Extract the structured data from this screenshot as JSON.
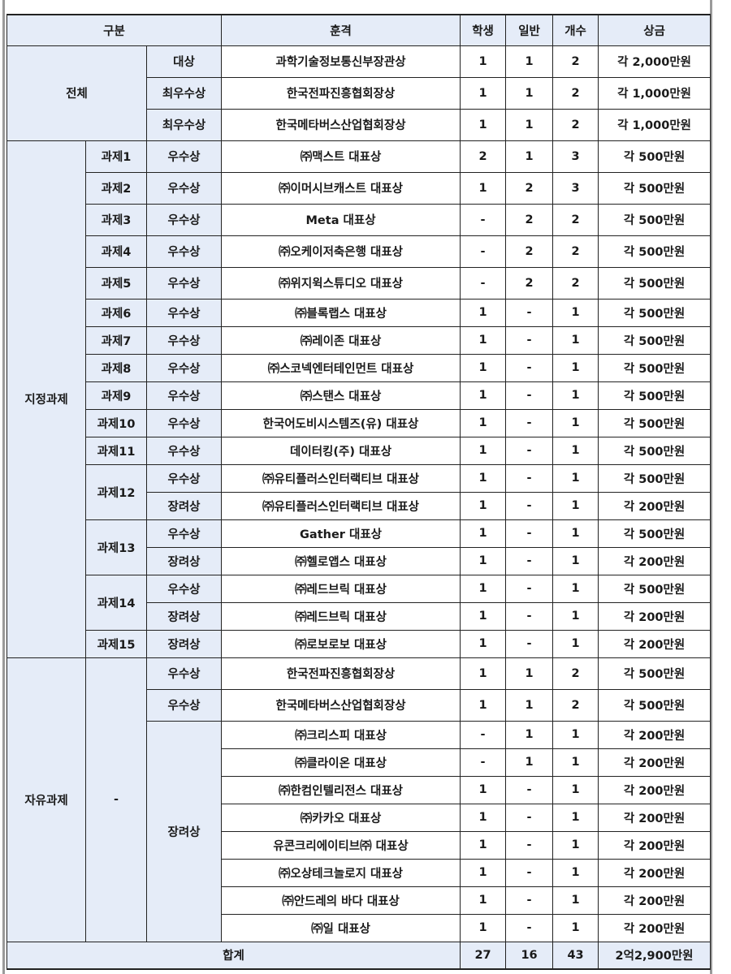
{
  "header": {
    "category": "구분",
    "award": "훈격",
    "student": "학생",
    "general": "일반",
    "count": "개수",
    "prize": "상금"
  },
  "sections": [
    {
      "label": "전체",
      "tasks": [
        {
          "label": null,
          "grades": [
            {
              "label": "대상",
              "awards": [
                {
                  "award": "과학기술정보통신부장관상",
                  "student": "1",
                  "general": "1",
                  "count": "2",
                  "prize": "각 2,000만원"
                }
              ]
            },
            {
              "label": "최우수상",
              "awards": [
                {
                  "award": "한국전파진흥협회장상",
                  "student": "1",
                  "general": "1",
                  "count": "2",
                  "prize": "각 1,000만원"
                }
              ]
            },
            {
              "label": "최우수상",
              "awards": [
                {
                  "award": "한국메타버스산업협회장상",
                  "student": "1",
                  "general": "1",
                  "count": "2",
                  "prize": "각 1,000만원"
                }
              ]
            }
          ]
        }
      ]
    },
    {
      "label": "지정과제",
      "tasks": [
        {
          "label": "과제1",
          "grades": [
            {
              "label": "우수상",
              "awards": [
                {
                  "award": "㈜맥스트 대표상",
                  "student": "2",
                  "general": "1",
                  "count": "3",
                  "prize": "각 500만원"
                }
              ]
            }
          ]
        },
        {
          "label": "과제2",
          "grades": [
            {
              "label": "우수상",
              "awards": [
                {
                  "award": "㈜이머시브캐스트 대표상",
                  "student": "1",
                  "general": "2",
                  "count": "3",
                  "prize": "각 500만원"
                }
              ]
            }
          ]
        },
        {
          "label": "과제3",
          "grades": [
            {
              "label": "우수상",
              "awards": [
                {
                  "award": "Meta 대표상",
                  "student": "-",
                  "general": "2",
                  "count": "2",
                  "prize": "각 500만원"
                }
              ]
            }
          ]
        },
        {
          "label": "과제4",
          "grades": [
            {
              "label": "우수상",
              "awards": [
                {
                  "award": "㈜오케이저축은행 대표상",
                  "student": "-",
                  "general": "2",
                  "count": "2",
                  "prize": "각 500만원"
                }
              ]
            }
          ]
        },
        {
          "label": "과제5",
          "grades": [
            {
              "label": "우수상",
              "awards": [
                {
                  "award": "㈜위지윅스튜디오 대표상",
                  "student": "-",
                  "general": "2",
                  "count": "2",
                  "prize": "각 500만원"
                }
              ]
            }
          ]
        },
        {
          "label": "과제6",
          "grades": [
            {
              "label": "우수상",
              "awards": [
                {
                  "award": "㈜블록랩스 대표상",
                  "student": "1",
                  "general": "-",
                  "count": "1",
                  "prize": "각 500만원"
                }
              ]
            }
          ]
        },
        {
          "label": "과제7",
          "grades": [
            {
              "label": "우수상",
              "awards": [
                {
                  "award": "㈜레이존 대표상",
                  "student": "1",
                  "general": "-",
                  "count": "1",
                  "prize": "각 500만원"
                }
              ]
            }
          ]
        },
        {
          "label": "과제8",
          "grades": [
            {
              "label": "우수상",
              "awards": [
                {
                  "award": "㈜스코넥엔터테인먼트 대표상",
                  "student": "1",
                  "general": "-",
                  "count": "1",
                  "prize": "각 500만원"
                }
              ]
            }
          ]
        },
        {
          "label": "과제9",
          "grades": [
            {
              "label": "우수상",
              "awards": [
                {
                  "award": "㈜스탠스 대표상",
                  "student": "1",
                  "general": "-",
                  "count": "1",
                  "prize": "각 500만원"
                }
              ]
            }
          ]
        },
        {
          "label": "과제10",
          "grades": [
            {
              "label": "우수상",
              "awards": [
                {
                  "award": "한국어도비시스템즈(유) 대표상",
                  "student": "1",
                  "general": "-",
                  "count": "1",
                  "prize": "각 500만원"
                }
              ]
            }
          ]
        },
        {
          "label": "과제11",
          "grades": [
            {
              "label": "우수상",
              "awards": [
                {
                  "award": "데이터킹(주) 대표상",
                  "student": "1",
                  "general": "-",
                  "count": "1",
                  "prize": "각 500만원"
                }
              ]
            }
          ]
        },
        {
          "label": "과제12",
          "grades": [
            {
              "label": "우수상",
              "awards": [
                {
                  "award": "㈜유티플러스인터랙티브 대표상",
                  "student": "1",
                  "general": "-",
                  "count": "1",
                  "prize": "각 500만원"
                }
              ]
            },
            {
              "label": "장려상",
              "awards": [
                {
                  "award": "㈜유티플러스인터랙티브 대표상",
                  "student": "1",
                  "general": "-",
                  "count": "1",
                  "prize": "각 200만원"
                }
              ]
            }
          ]
        },
        {
          "label": "과제13",
          "grades": [
            {
              "label": "우수상",
              "awards": [
                {
                  "award": "Gather 대표상",
                  "student": "1",
                  "general": "-",
                  "count": "1",
                  "prize": "각 500만원"
                }
              ]
            },
            {
              "label": "장려상",
              "awards": [
                {
                  "award": "㈜헬로앱스 대표상",
                  "student": "1",
                  "general": "-",
                  "count": "1",
                  "prize": "각 200만원"
                }
              ]
            }
          ]
        },
        {
          "label": "과제14",
          "grades": [
            {
              "label": "우수상",
              "awards": [
                {
                  "award": "㈜레드브릭 대표상",
                  "student": "1",
                  "general": "-",
                  "count": "1",
                  "prize": "각 500만원"
                }
              ]
            },
            {
              "label": "장려상",
              "awards": [
                {
                  "award": "㈜레드브릭 대표상",
                  "student": "1",
                  "general": "-",
                  "count": "1",
                  "prize": "각 200만원"
                }
              ]
            }
          ]
        },
        {
          "label": "과제15",
          "grades": [
            {
              "label": "장려상",
              "awards": [
                {
                  "award": "㈜로보로보 대표상",
                  "student": "1",
                  "general": "-",
                  "count": "1",
                  "prize": "각 200만원"
                }
              ]
            }
          ]
        }
      ]
    },
    {
      "label": "자유과제",
      "tasks": [
        {
          "label": "-",
          "grades": [
            {
              "label": "우수상",
              "awards": [
                {
                  "award": "한국전파진흥협회장상",
                  "student": "1",
                  "general": "1",
                  "count": "2",
                  "prize": "각 500만원"
                }
              ]
            },
            {
              "label": "우수상",
              "awards": [
                {
                  "award": "한국메타버스산업협회장상",
                  "student": "1",
                  "general": "1",
                  "count": "2",
                  "prize": "각 500만원"
                }
              ]
            },
            {
              "label": "장려상",
              "awards": [
                {
                  "award": "㈜크리스피 대표상",
                  "student": "-",
                  "general": "1",
                  "count": "1",
                  "prize": "각 200만원"
                },
                {
                  "award": "㈜클라이온 대표상",
                  "student": "-",
                  "general": "1",
                  "count": "1",
                  "prize": "각 200만원"
                },
                {
                  "award": "㈜한컴인텔리전스 대표상",
                  "student": "1",
                  "general": "-",
                  "count": "1",
                  "prize": "각 200만원"
                },
                {
                  "award": "㈜카카오 대표상",
                  "student": "1",
                  "general": "-",
                  "count": "1",
                  "prize": "각 200만원"
                },
                {
                  "award": "유콘크리에이티브㈜ 대표상",
                  "student": "1",
                  "general": "-",
                  "count": "1",
                  "prize": "각 200만원"
                },
                {
                  "award": "㈜오상테크놀로지 대표상",
                  "student": "1",
                  "general": "-",
                  "count": "1",
                  "prize": "각 200만원"
                },
                {
                  "award": "㈜안드레의 바다 대표상",
                  "student": "1",
                  "general": "-",
                  "count": "1",
                  "prize": "각 200만원"
                },
                {
                  "award": "㈜일 대표상",
                  "student": "1",
                  "general": "-",
                  "count": "1",
                  "prize": "각 200만원"
                }
              ]
            }
          ]
        }
      ]
    }
  ],
  "total": {
    "label": "합계",
    "student": "27",
    "general": "16",
    "count": "43",
    "prize": "2억2,900만원"
  },
  "colors": {
    "header_bg": "#e5ecf8",
    "border": "#222222"
  }
}
